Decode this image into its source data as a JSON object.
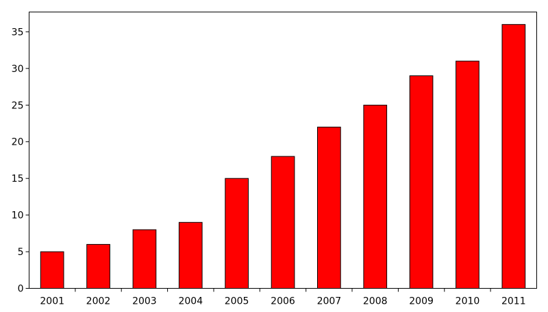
{
  "chart_data": {
    "type": "bar",
    "title": "",
    "xlabel": "",
    "ylabel": "",
    "categories": [
      "2001",
      "2002",
      "2003",
      "2004",
      "2005",
      "2006",
      "2007",
      "2008",
      "2009",
      "2010",
      "2011"
    ],
    "values": [
      5,
      6,
      8,
      9,
      15,
      18,
      22,
      25,
      29,
      31,
      36
    ],
    "ylim": [
      0,
      37.7
    ],
    "yticks": [
      0,
      5,
      10,
      15,
      20,
      25,
      30,
      35
    ],
    "ytick_labels": [
      "0",
      "5",
      "10",
      "15",
      "20",
      "25",
      "30",
      "35"
    ],
    "grid": false,
    "legend": "none",
    "bar_color": "#ff0000",
    "bar_edge_color": "#000000"
  }
}
